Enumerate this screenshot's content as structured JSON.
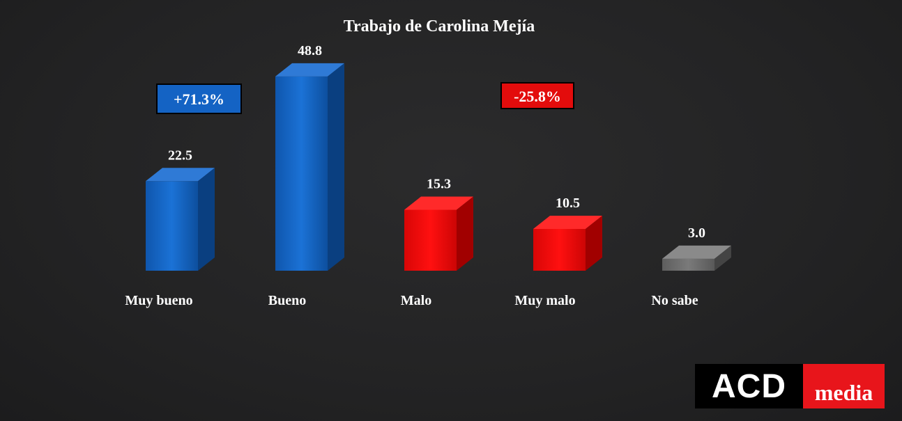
{
  "chart_data": {
    "type": "bar",
    "title": "Trabajo de Carolina Mejía",
    "categories": [
      "Muy bueno",
      "Bueno",
      "Malo",
      "Muy malo",
      "No sabe"
    ],
    "values": [
      22.5,
      48.8,
      15.3,
      10.5,
      3.0
    ],
    "value_labels": [
      "22.5",
      "48.8",
      "15.3",
      "10.5",
      "3.0"
    ],
    "bar_colors": [
      "#1463c4",
      "#1463c4",
      "#ee0a0a",
      "#ee0a0a",
      "#6a6a6a"
    ],
    "annotations": [
      {
        "text": "+71.3%",
        "color": "#1463c4"
      },
      {
        "text": "-25.8%",
        "color": "#e30c0c"
      }
    ],
    "grid": false,
    "legend": "none"
  },
  "logo": {
    "left_text": "ACD",
    "right_text": "media"
  }
}
